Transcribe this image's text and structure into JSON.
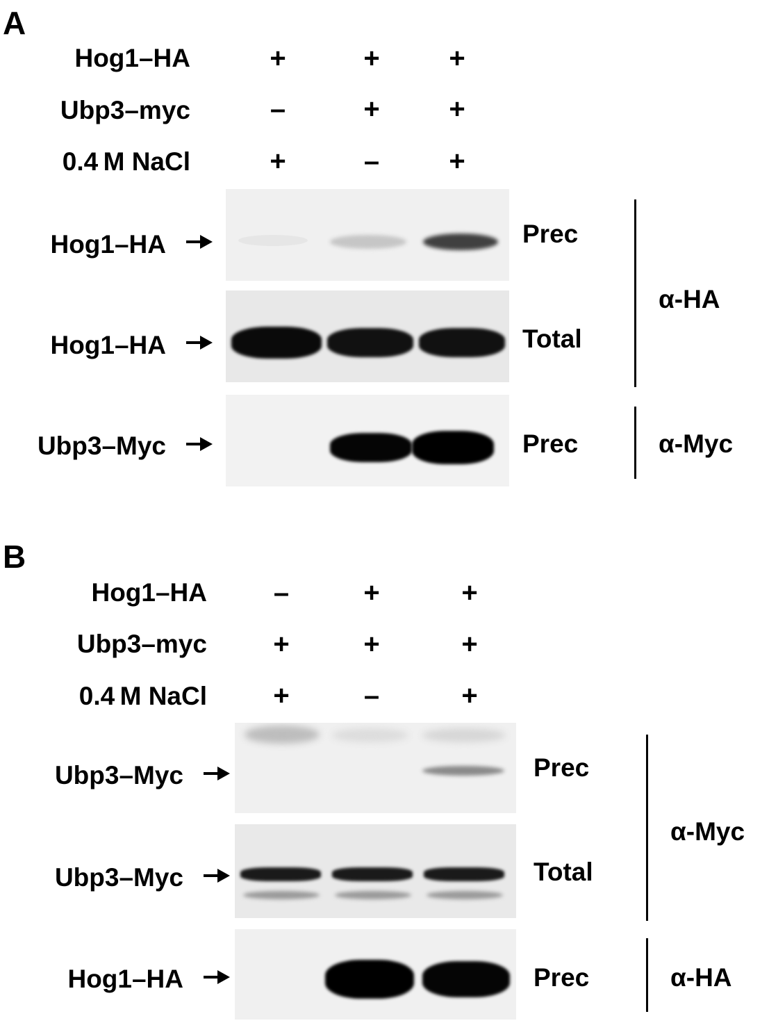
{
  "panels": [
    {
      "letter": "A",
      "conditions": [
        {
          "label": "Hog1–HA",
          "signs": [
            "+",
            "+",
            "+"
          ]
        },
        {
          "label": "Ubp3–myc",
          "signs": [
            "–",
            "+",
            "+"
          ]
        },
        {
          "label": "0.4 M NaCl",
          "signs": [
            "+",
            "–",
            "+"
          ]
        }
      ],
      "blots": [
        {
          "row_label": "Hog1–HA",
          "type": "Prec"
        },
        {
          "row_label": "Hog1–HA",
          "type": "Total"
        },
        {
          "row_label": "Ubp3–Myc",
          "type": "Prec"
        }
      ],
      "antibodies": [
        "α-HA",
        "α-Myc"
      ]
    },
    {
      "letter": "B",
      "conditions": [
        {
          "label": "Hog1–HA",
          "signs": [
            "–",
            "+",
            "+"
          ]
        },
        {
          "label": "Ubp3–myc",
          "signs": [
            "+",
            "+",
            "+"
          ]
        },
        {
          "label": "0.4 M NaCl",
          "signs": [
            "+",
            "–",
            "+"
          ]
        }
      ],
      "blots": [
        {
          "row_label": "Ubp3–Myc",
          "type": "Prec"
        },
        {
          "row_label": "Ubp3–Myc",
          "type": "Total"
        },
        {
          "row_label": "Hog1–HA",
          "type": "Prec"
        }
      ],
      "antibodies": [
        "α-Myc",
        "α-HA"
      ]
    }
  ]
}
